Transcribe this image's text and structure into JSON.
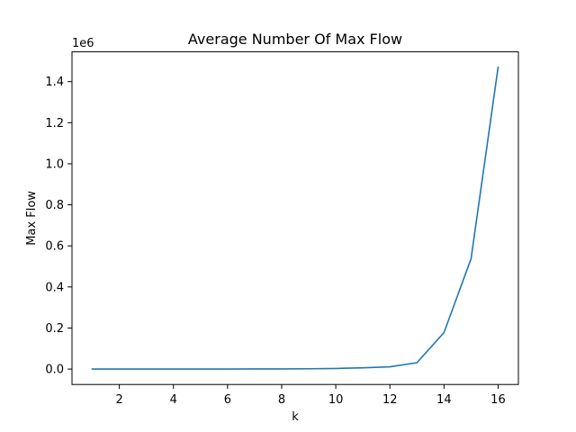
{
  "chart_data": {
    "type": "line",
    "title": "Average Number Of Max Flow",
    "xlabel": "k",
    "ylabel": "Max Flow",
    "y_offset_label": "1e6",
    "grid": false,
    "xlim": [
      0.25,
      16.75
    ],
    "ylim": [
      -0.075,
      1.545
    ],
    "x_ticks": [
      2,
      4,
      6,
      8,
      10,
      12,
      14,
      16
    ],
    "x_tick_labels": [
      "2",
      "4",
      "6",
      "8",
      "10",
      "12",
      "14",
      "16"
    ],
    "y_ticks": [
      0.0,
      0.2,
      0.4,
      0.6,
      0.8,
      1.0,
      1.2,
      1.4
    ],
    "y_tick_labels": [
      "0.0",
      "0.2",
      "0.4",
      "0.6",
      "0.8",
      "1.0",
      "1.2",
      "1.4"
    ],
    "series": [
      {
        "color": "#1f77b4",
        "x": [
          1,
          2,
          3,
          4,
          5,
          6,
          7,
          8,
          9,
          10,
          11,
          12,
          13,
          14,
          15,
          16
        ],
        "y": [
          0.0,
          0.0,
          0.0,
          0.0,
          0.0,
          0.0,
          0.0005,
          0.0008,
          0.0015,
          0.003,
          0.006,
          0.011,
          0.031,
          0.178,
          0.537,
          1.47
        ]
      }
    ]
  }
}
